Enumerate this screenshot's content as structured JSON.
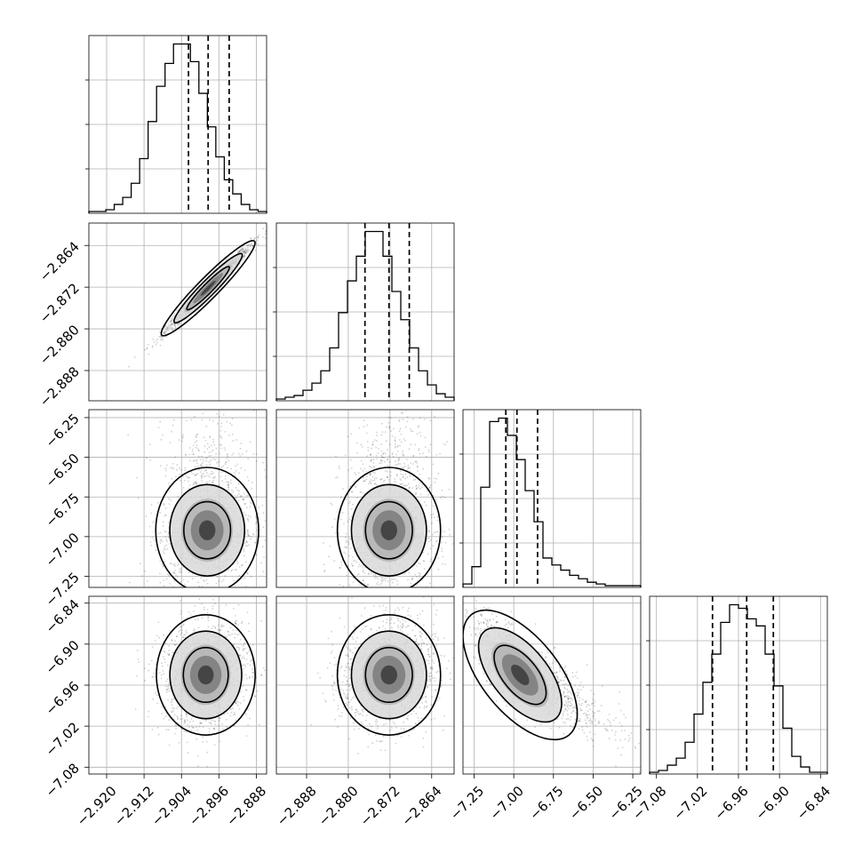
{
  "chart_data": {
    "type": "corner",
    "title": "",
    "parameters": [
      {
        "range": [
          -2.9238,
          -2.8858
        ],
        "ticks": [
          -2.92,
          -2.912,
          -2.904,
          -2.896,
          -2.888
        ],
        "tick_labels": [
          "−2.920",
          "−2.912",
          "−2.904",
          "−2.896",
          "−2.888"
        ],
        "quantiles": [
          -2.9025,
          -2.8983,
          -2.8938
        ],
        "histogram": [
          1,
          1,
          2,
          5,
          9,
          17,
          31,
          52,
          72,
          85,
          96,
          96,
          86,
          68,
          49,
          32,
          19,
          11,
          5,
          2,
          1
        ]
      },
      {
        "range": [
          -2.8938,
          -2.8597
        ],
        "ticks": [
          -2.888,
          -2.88,
          -2.872,
          -2.864
        ],
        "tick_labels": [
          "−2.888",
          "−2.880",
          "−2.872",
          "−2.864"
        ],
        "quantiles": [
          -2.8768,
          -2.8722,
          -2.8683
        ],
        "histogram": [
          1,
          2,
          3,
          6,
          10,
          17,
          30,
          50,
          68,
          82,
          96,
          96,
          82,
          62,
          46,
          30,
          17,
          9,
          4,
          2
        ]
      },
      {
        "range": [
          -7.32,
          -6.2
        ],
        "ticks": [
          -7.25,
          -7.0,
          -6.75,
          -6.5,
          -6.25
        ],
        "tick_labels": [
          "−7.25",
          "−7.00",
          "−6.75",
          "−6.50",
          "−6.25"
        ],
        "quantiles": [
          -7.05,
          -6.98,
          -6.85
        ],
        "histogram": [
          2,
          12,
          58,
          96,
          98,
          88,
          74,
          56,
          38,
          17,
          13,
          10,
          7,
          5,
          3,
          2,
          1,
          1,
          1,
          1
        ]
      },
      {
        "range": [
          -7.09,
          -6.83
        ],
        "ticks": [
          -7.08,
          -7.02,
          -6.96,
          -6.9,
          -6.84
        ],
        "tick_labels": [
          "−7.08",
          "−7.02",
          "−6.96",
          "−6.90",
          "−6.84"
        ],
        "quantiles": [
          -6.998,
          -6.948,
          -6.909
        ],
        "histogram": [
          1,
          2,
          5,
          9,
          18,
          34,
          52,
          68,
          86,
          96,
          94,
          88,
          84,
          68,
          50,
          26,
          10,
          4,
          1,
          1
        ]
      }
    ],
    "pairs": [
      {
        "x": 0,
        "y": 1,
        "mean": [
          -2.8983,
          -2.8722
        ],
        "sd": [
          0.0045,
          0.0041
        ],
        "corr": 0.985
      },
      {
        "x": 0,
        "y": 2,
        "mean": [
          -2.8985,
          -6.96
        ],
        "sd": [
          0.005,
          0.18
        ],
        "corr": 0.1
      },
      {
        "x": 1,
        "y": 2,
        "mean": [
          -2.8722,
          -6.96
        ],
        "sd": [
          0.0045,
          0.18
        ],
        "corr": 0.1
      },
      {
        "x": 0,
        "y": 3,
        "mean": [
          -2.8988,
          -6.945
        ],
        "sd": [
          0.0048,
          0.04
        ],
        "corr": 0.1
      },
      {
        "x": 1,
        "y": 3,
        "mean": [
          -2.8722,
          -6.945
        ],
        "sd": [
          0.0045,
          0.04
        ],
        "corr": 0.1
      },
      {
        "x": 2,
        "y": 3,
        "mean": [
          -6.96,
          -6.945
        ],
        "sd": [
          0.14,
          0.04
        ],
        "corr": -0.8
      }
    ],
    "grid": true,
    "xlabel": "",
    "ylabel": ""
  }
}
